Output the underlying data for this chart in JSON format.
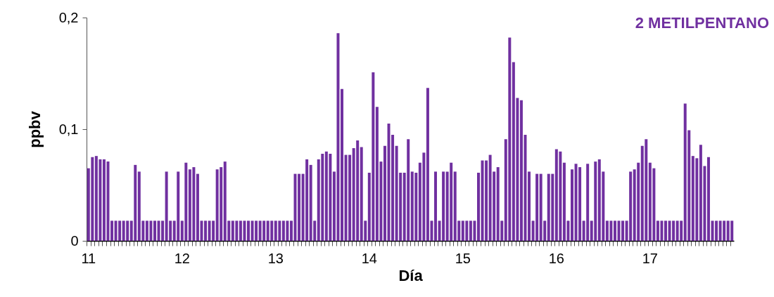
{
  "chart_data": {
    "type": "bar",
    "title": "2 METILPENTANO",
    "xlabel": "Día",
    "ylabel": "ppbv",
    "color": "#7030a0",
    "ylim": [
      0,
      0.2
    ],
    "yticks": [
      0,
      {
        "value": 0.1,
        "label": "0,1"
      },
      {
        "value": 0.2,
        "label": "0,2"
      }
    ],
    "categories": [
      "11",
      null,
      null,
      null,
      null,
      null,
      null,
      null,
      null,
      null,
      null,
      null,
      null,
      null,
      null,
      null,
      null,
      null,
      null,
      null,
      null,
      null,
      null,
      null,
      "12",
      null,
      null,
      null,
      null,
      null,
      null,
      null,
      null,
      null,
      null,
      null,
      null,
      null,
      null,
      null,
      null,
      null,
      null,
      null,
      null,
      null,
      null,
      null,
      "13",
      null,
      null,
      null,
      null,
      null,
      null,
      null,
      null,
      null,
      null,
      null,
      null,
      null,
      null,
      null,
      null,
      null,
      null,
      null,
      null,
      null,
      null,
      null,
      "14",
      null,
      null,
      null,
      null,
      null,
      null,
      null,
      null,
      null,
      null,
      null,
      null,
      null,
      null,
      null,
      null,
      null,
      null,
      null,
      null,
      null,
      null,
      null,
      "15",
      null,
      null,
      null,
      null,
      null,
      null,
      null,
      null,
      null,
      null,
      null,
      null,
      null,
      null,
      null,
      null,
      null,
      null,
      null,
      null,
      null,
      null,
      null,
      "16",
      null,
      null,
      null,
      null,
      null,
      null,
      null,
      null,
      null,
      null,
      null,
      null,
      null,
      null,
      null,
      null,
      null,
      null,
      null,
      null,
      null,
      null,
      null,
      "17",
      null,
      null,
      null,
      null,
      null,
      null,
      null,
      null,
      null,
      null,
      null,
      null,
      null,
      null,
      null,
      null,
      null,
      null,
      null,
      null,
      null
    ],
    "values": [
      0.065,
      0.075,
      0.076,
      0.073,
      0.073,
      0.071,
      0.018,
      0.018,
      0.018,
      0.018,
      0.018,
      0.018,
      0.068,
      0.062,
      0.018,
      0.018,
      0.018,
      0.018,
      0.018,
      0.018,
      0.062,
      0.018,
      0.018,
      0.062,
      0.018,
      0.07,
      0.064,
      0.066,
      0.06,
      0.018,
      0.018,
      0.018,
      0.018,
      0.064,
      0.066,
      0.071,
      0.018,
      0.018,
      0.018,
      0.018,
      0.018,
      0.018,
      0.018,
      0.018,
      0.018,
      0.018,
      0.018,
      0.018,
      0.018,
      0.018,
      0.018,
      0.018,
      0.018,
      0.06,
      0.06,
      0.06,
      0.073,
      0.068,
      0.018,
      0.073,
      0.078,
      0.08,
      0.078,
      0.062,
      0.186,
      0.136,
      0.077,
      0.077,
      0.083,
      0.09,
      0.084,
      0.018,
      0.061,
      0.151,
      0.12,
      0.071,
      0.085,
      0.105,
      0.095,
      0.085,
      0.061,
      0.061,
      0.091,
      0.062,
      0.061,
      0.07,
      0.079,
      0.137,
      0.018,
      0.062,
      0.018,
      0.062,
      0.062,
      0.07,
      0.062,
      0.018,
      0.018,
      0.018,
      0.018,
      0.018,
      0.061,
      0.072,
      0.072,
      0.077,
      0.062,
      0.066,
      0.018,
      0.091,
      0.182,
      0.16,
      0.128,
      0.126,
      0.095,
      0.062,
      0.018,
      0.06,
      0.06,
      0.018,
      0.06,
      0.06,
      0.082,
      0.08,
      0.07,
      0.018,
      0.064,
      0.069,
      0.066,
      0.018,
      0.069,
      0.018,
      0.071,
      0.073,
      0.062,
      0.018,
      0.018,
      0.018,
      0.018,
      0.018,
      0.018,
      0.062,
      0.064,
      0.07,
      0.085,
      0.091,
      0.07,
      0.065,
      0.018,
      0.018,
      0.018,
      0.018,
      0.018,
      0.018,
      0.018,
      0.123,
      0.099,
      0.076,
      0.074,
      0.086,
      0.067,
      0.075,
      0.018,
      0.018,
      0.018,
      0.018,
      0.018,
      0.018
    ]
  }
}
